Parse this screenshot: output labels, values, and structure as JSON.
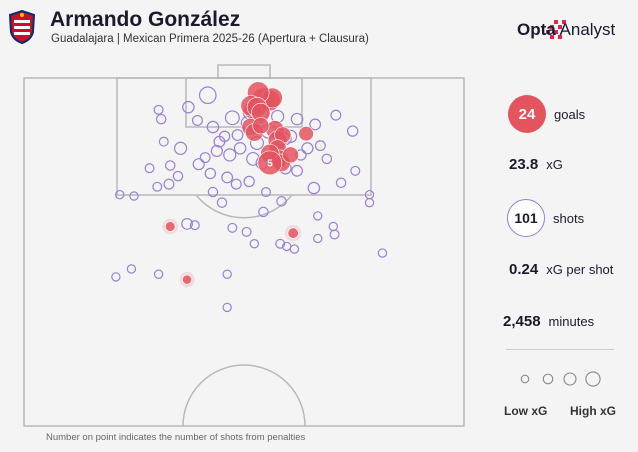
{
  "header": {
    "title": "Armando González",
    "subtitle": "Guadalajara | Mexican Primera 2025-26 (Apertura + Clausura)"
  },
  "brand": {
    "bold": "Opta",
    "light": "Analyst"
  },
  "stats": {
    "goals_value": "24",
    "goals_label": "goals",
    "xg_value": "23.8",
    "xg_label": "xG",
    "shots_value": "101",
    "shots_label": "shots",
    "xg_per_shot_value": "0.24",
    "xg_per_shot_label": "xG per shot",
    "minutes_value": "2,458",
    "minutes_label": "minutes"
  },
  "legend": {
    "low": "Low xG",
    "high": "High xG"
  },
  "footnote": "Number on point indicates the number of shots from penalties",
  "colors": {
    "goal": "#e3545f",
    "shot": "#9b7fd4",
    "pitch_line": "#b8b8b8"
  },
  "chart_data": {
    "type": "scatter",
    "series": [
      {
        "name": "goals",
        "points": [
          {
            "x": 3.0,
            "y": 3.2,
            "xg": 0.72
          },
          {
            "x": 4.0,
            "y": 3.4,
            "xg": 0.55
          },
          {
            "x": 4.4,
            "y": 3.0,
            "xg": 0.5
          },
          {
            "x": 2.2,
            "y": 2.2,
            "xg": 0.62
          },
          {
            "x": 1.4,
            "y": 4.8,
            "xg": 0.4
          },
          {
            "x": 1.1,
            "y": 4.2,
            "xg": 0.55
          },
          {
            "x": 2.0,
            "y": 4.4,
            "xg": 0.48
          },
          {
            "x": 2.6,
            "y": 5.2,
            "xg": 0.42
          },
          {
            "x": 1.0,
            "y": 7.4,
            "xg": 0.35
          },
          {
            "x": 1.6,
            "y": 8.2,
            "xg": 0.38
          },
          {
            "x": 4.8,
            "y": 7.8,
            "xg": 0.4
          },
          {
            "x": 5.2,
            "y": 9.4,
            "xg": 0.45
          },
          {
            "x": 6.0,
            "y": 8.6,
            "xg": 0.3
          },
          {
            "x": 5.2,
            "y": 10.6,
            "xg": 0.34
          },
          {
            "x": 5.4,
            "y": 12.2,
            "xg": 0.38
          },
          {
            "x": 4.0,
            "y": 11.4,
            "xg": 0.42
          },
          {
            "x": 5.8,
            "y": 12.8,
            "xg": 0.36
          },
          {
            "x": 7.2,
            "y": 11.6,
            "xg": 0.28
          },
          {
            "x": 4.0,
            "y": 12.8,
            "xg": 0.79,
            "penalties": 5
          },
          {
            "x": 2.6,
            "y": 7.2,
            "xg": 0.3
          },
          {
            "x": 9.6,
            "y": 8.4,
            "xg": 0.22
          },
          {
            "x": 7.6,
            "y": 23.4,
            "xg": 0.08
          },
          {
            "x": -11.4,
            "y": 22.4,
            "xg": 0.06
          },
          {
            "x": -8.8,
            "y": 30.4,
            "xg": 0.05
          }
        ]
      },
      {
        "name": "shots",
        "points": [
          {
            "x": -5.6,
            "y": 2.6,
            "xg": 0.3
          },
          {
            "x": -8.6,
            "y": 4.4,
            "xg": 0.1
          },
          {
            "x": -13.2,
            "y": 4.8,
            "xg": 0.04
          },
          {
            "x": -12.8,
            "y": 6.2,
            "xg": 0.05
          },
          {
            "x": -7.2,
            "y": 6.4,
            "xg": 0.06
          },
          {
            "x": -4.8,
            "y": 7.4,
            "xg": 0.1
          },
          {
            "x": -3.0,
            "y": 8.8,
            "xg": 0.07
          },
          {
            "x": -1.0,
            "y": 8.6,
            "xg": 0.08
          },
          {
            "x": 1.0,
            "y": 5.2,
            "xg": 0.2
          },
          {
            "x": 2.6,
            "y": 5.6,
            "xg": 0.22
          },
          {
            "x": 5.2,
            "y": 5.8,
            "xg": 0.12
          },
          {
            "x": 8.2,
            "y": 6.2,
            "xg": 0.1
          },
          {
            "x": 11.0,
            "y": 7.0,
            "xg": 0.08
          },
          {
            "x": 14.2,
            "y": 5.6,
            "xg": 0.06
          },
          {
            "x": 16.8,
            "y": 8.0,
            "xg": 0.07
          },
          {
            "x": 6.4,
            "y": 9.2,
            "xg": 0.1
          },
          {
            "x": 7.2,
            "y": 8.8,
            "xg": 0.12
          },
          {
            "x": 9.8,
            "y": 10.6,
            "xg": 0.09
          },
          {
            "x": 11.8,
            "y": 10.2,
            "xg": 0.06
          },
          {
            "x": -9.8,
            "y": 10.6,
            "xg": 0.12
          },
          {
            "x": -4.2,
            "y": 11.0,
            "xg": 0.09
          },
          {
            "x": -2.2,
            "y": 11.6,
            "xg": 0.12
          },
          {
            "x": -0.6,
            "y": 10.6,
            "xg": 0.1
          },
          {
            "x": 1.4,
            "y": 12.2,
            "xg": 0.14
          },
          {
            "x": 2.8,
            "y": 12.8,
            "xg": 0.12
          },
          {
            "x": 6.4,
            "y": 13.6,
            "xg": 0.1
          },
          {
            "x": 8.2,
            "y": 14.0,
            "xg": 0.08
          },
          {
            "x": -14.6,
            "y": 13.6,
            "xg": 0.04
          },
          {
            "x": -11.4,
            "y": 13.2,
            "xg": 0.05
          },
          {
            "x": -7.0,
            "y": 13.0,
            "xg": 0.09
          },
          {
            "x": -5.2,
            "y": 14.4,
            "xg": 0.07
          },
          {
            "x": -2.6,
            "y": 15.0,
            "xg": 0.08
          },
          {
            "x": -1.2,
            "y": 16.0,
            "xg": 0.06
          },
          {
            "x": 0.8,
            "y": 15.6,
            "xg": 0.07
          },
          {
            "x": -11.6,
            "y": 16.0,
            "xg": 0.06
          },
          {
            "x": -10.2,
            "y": 14.8,
            "xg": 0.05
          },
          {
            "x": -13.4,
            "y": 16.4,
            "xg": 0.04
          },
          {
            "x": -17.0,
            "y": 17.8,
            "xg": 0.03
          },
          {
            "x": -19.2,
            "y": 17.6,
            "xg": 0.03
          },
          {
            "x": 10.8,
            "y": 16.6,
            "xg": 0.1
          },
          {
            "x": 15.0,
            "y": 15.8,
            "xg": 0.05
          },
          {
            "x": 19.4,
            "y": 17.6,
            "xg": 0.03
          },
          {
            "x": 19.4,
            "y": 18.8,
            "xg": 0.03
          },
          {
            "x": -3.4,
            "y": 18.8,
            "xg": 0.05
          },
          {
            "x": 3.0,
            "y": 20.2,
            "xg": 0.05
          },
          {
            "x": 5.8,
            "y": 18.6,
            "xg": 0.05
          },
          {
            "x": -8.8,
            "y": 22.0,
            "xg": 0.08
          },
          {
            "x": -1.8,
            "y": 22.6,
            "xg": 0.04
          },
          {
            "x": 11.4,
            "y": 20.8,
            "xg": 0.03
          },
          {
            "x": 14.0,
            "y": 23.6,
            "xg": 0.04
          },
          {
            "x": 13.8,
            "y": 22.4,
            "xg": 0.03
          },
          {
            "x": 0.4,
            "y": 23.2,
            "xg": 0.04
          },
          {
            "x": 1.6,
            "y": 25.0,
            "xg": 0.03
          },
          {
            "x": 5.6,
            "y": 25.0,
            "xg": 0.04
          },
          {
            "x": 6.6,
            "y": 25.4,
            "xg": 0.03
          },
          {
            "x": 7.8,
            "y": 25.8,
            "xg": 0.03
          },
          {
            "x": 11.4,
            "y": 24.2,
            "xg": 0.03
          },
          {
            "x": 21.4,
            "y": 26.4,
            "xg": 0.03
          },
          {
            "x": -17.4,
            "y": 28.8,
            "xg": 0.03
          },
          {
            "x": -19.8,
            "y": 30.0,
            "xg": 0.03
          },
          {
            "x": -13.2,
            "y": 29.6,
            "xg": 0.03
          },
          {
            "x": -2.6,
            "y": 29.6,
            "xg": 0.03
          },
          {
            "x": -2.6,
            "y": 34.6,
            "xg": 0.03
          },
          {
            "x": -7.6,
            "y": 22.2,
            "xg": 0.04
          },
          {
            "x": 3.4,
            "y": 17.2,
            "xg": 0.04
          },
          {
            "x": 17.2,
            "y": 14.0,
            "xg": 0.04
          },
          {
            "x": 0.6,
            "y": 6.8,
            "xg": 0.16
          },
          {
            "x": -1.8,
            "y": 6.0,
            "xg": 0.18
          },
          {
            "x": 2.0,
            "y": 9.8,
            "xg": 0.15
          },
          {
            "x": 3.8,
            "y": 8.0,
            "xg": 0.2
          },
          {
            "x": -3.8,
            "y": 9.6,
            "xg": 0.08
          },
          {
            "x": 8.8,
            "y": 11.6,
            "xg": 0.07
          },
          {
            "x": -6.0,
            "y": 12.0,
            "xg": 0.06
          },
          {
            "x": -12.4,
            "y": 9.6,
            "xg": 0.04
          },
          {
            "x": 12.8,
            "y": 12.2,
            "xg": 0.05
          },
          {
            "x": -4.8,
            "y": 17.2,
            "xg": 0.05
          }
        ]
      }
    ],
    "xlim": [
      -34,
      34
    ],
    "ylim": [
      0,
      52.5
    ],
    "legend_xg_levels": [
      0.05,
      0.15,
      0.35,
      0.6
    ]
  }
}
